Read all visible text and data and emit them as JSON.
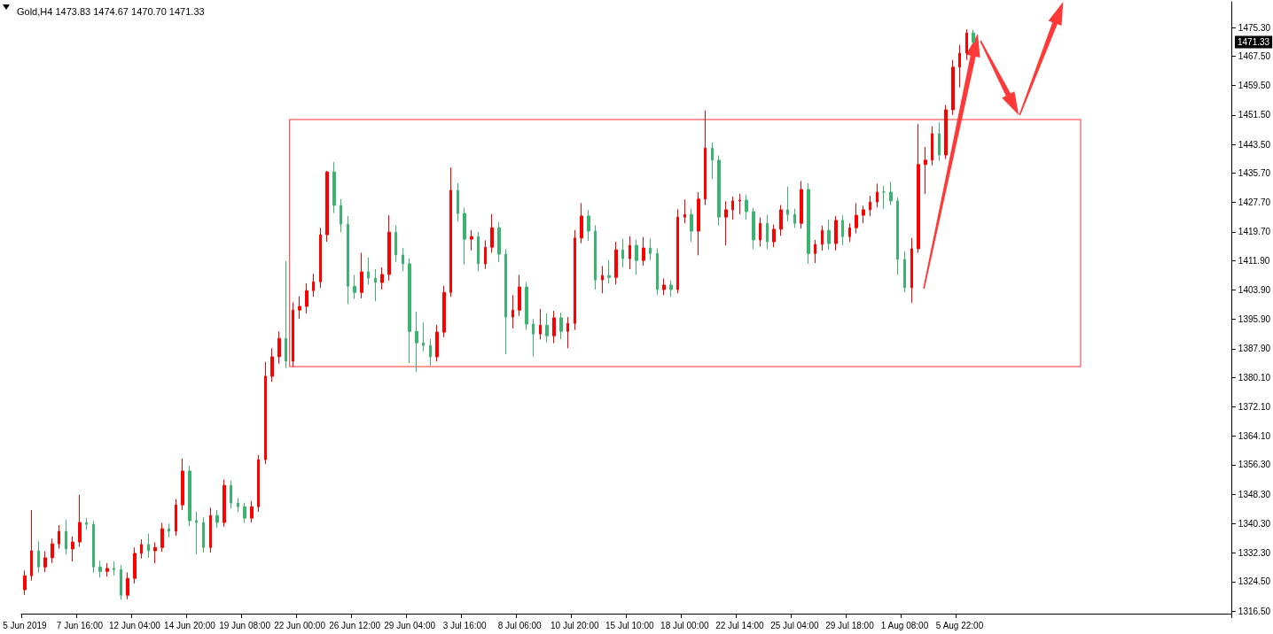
{
  "chart_data": {
    "type": "candlestick",
    "title": "Gold,H4 1473.83 1474.67 1470.70 1471.33",
    "categories": [
      "5 Jun 2019",
      null,
      null,
      null,
      null,
      null,
      null,
      null,
      "7 Jun 16:00",
      null,
      null,
      null,
      null,
      null,
      null,
      null,
      "12 Jun 04:00",
      null,
      null,
      null,
      null,
      null,
      null,
      null,
      "14 Jun 20:00",
      null,
      null,
      null,
      null,
      null,
      null,
      null,
      "19 Jun 08:00",
      null,
      null,
      null,
      null,
      null,
      null,
      null,
      "22 Jun 00:00",
      null,
      null,
      null,
      null,
      null,
      null,
      null,
      "26 Jun 12:00",
      null,
      null,
      null,
      null,
      null,
      null,
      null,
      "29 Jun 04:00",
      null,
      null,
      null,
      null,
      null,
      null,
      null,
      "3 Jul 16:00",
      null,
      null,
      null,
      null,
      null,
      null,
      null,
      "8 Jul 06:00",
      null,
      null,
      null,
      null,
      null,
      null,
      null,
      "10 Jul 20:00",
      null,
      null,
      null,
      null,
      null,
      null,
      null,
      "15 Jul 10:00",
      null,
      null,
      null,
      null,
      null,
      null,
      null,
      "18 Jul 00:00",
      null,
      null,
      null,
      null,
      null,
      null,
      null,
      "22 Jul 14:00",
      null,
      null,
      null,
      null,
      null,
      null,
      null,
      "25 Jul 04:00",
      null,
      null,
      null,
      null,
      null,
      null,
      null,
      "29 Jul 18:00",
      null,
      null,
      null,
      null,
      null,
      null,
      null,
      "1 Aug 08:00",
      null,
      null,
      null,
      null,
      null,
      null,
      null,
      "5 Aug 22:00",
      null,
      null,
      null,
      null,
      null,
      null,
      null,
      null,
      null,
      null,
      null,
      null,
      null,
      null,
      null,
      null,
      null,
      null,
      null,
      null,
      null,
      null,
      null,
      null,
      null,
      null,
      null,
      null,
      null,
      null,
      null,
      null,
      null,
      null,
      null,
      null,
      null,
      null,
      null
    ],
    "ohlc": [
      [
        1322.3,
        1327.5,
        1320.9,
        1326.1
      ],
      [
        1326.1,
        1344.0,
        1324.8,
        1332.9
      ],
      [
        1332.9,
        1335.5,
        1327.0,
        1328.5
      ],
      [
        1328.5,
        1332.8,
        1327.1,
        1331.0
      ],
      [
        1331.0,
        1336.2,
        1329.6,
        1334.8
      ],
      [
        1334.8,
        1339.9,
        1333.5,
        1338.2
      ],
      [
        1338.2,
        1341.3,
        1331.9,
        1333.4
      ],
      [
        1333.4,
        1336.8,
        1330.0,
        1335.3
      ],
      [
        1335.3,
        1348.1,
        1334.0,
        1340.6
      ],
      [
        1340.6,
        1341.8,
        1338.6,
        1340.1
      ],
      [
        1340.1,
        1341.0,
        1327.0,
        1328.5
      ],
      [
        1328.5,
        1330.2,
        1325.6,
        1327.3
      ],
      [
        1327.3,
        1329.5,
        1325.9,
        1328.1
      ],
      [
        1328.1,
        1330.0,
        1326.2,
        1327.8
      ],
      [
        1327.8,
        1329.0,
        1319.6,
        1320.8
      ],
      [
        1320.8,
        1327.0,
        1319.7,
        1325.4
      ],
      [
        1325.4,
        1333.8,
        1324.0,
        1332.2
      ],
      [
        1332.2,
        1336.0,
        1330.8,
        1334.6
      ],
      [
        1334.6,
        1337.6,
        1331.0,
        1332.9
      ],
      [
        1332.9,
        1335.2,
        1329.5,
        1333.8
      ],
      [
        1333.8,
        1340.5,
        1332.6,
        1338.9
      ],
      [
        1338.9,
        1340.3,
        1336.5,
        1338.2
      ],
      [
        1338.2,
        1347.0,
        1337.0,
        1345.4
      ],
      [
        1345.4,
        1358.0,
        1344.0,
        1354.6
      ],
      [
        1354.6,
        1356.0,
        1339.6,
        1341.1
      ],
      [
        1341.1,
        1343.5,
        1332.0,
        1340.6
      ],
      [
        1340.6,
        1342.0,
        1332.5,
        1333.8
      ],
      [
        1333.8,
        1344.6,
        1332.4,
        1342.5
      ],
      [
        1342.5,
        1344.0,
        1339.2,
        1340.6
      ],
      [
        1340.6,
        1352.3,
        1339.5,
        1350.7
      ],
      [
        1350.7,
        1352.0,
        1344.4,
        1345.9
      ],
      [
        1345.9,
        1347.2,
        1343.4,
        1344.9
      ],
      [
        1344.9,
        1346.0,
        1340.5,
        1341.8
      ],
      [
        1341.8,
        1346.5,
        1340.6,
        1344.9
      ],
      [
        1344.9,
        1359.0,
        1343.5,
        1357.7
      ],
      [
        1357.7,
        1384.3,
        1356.5,
        1380.4
      ],
      [
        1380.4,
        1388.0,
        1378.9,
        1385.7
      ],
      [
        1385.7,
        1392.6,
        1383.8,
        1390.7
      ],
      [
        1390.7,
        1411.7,
        1382.6,
        1384.5
      ],
      [
        1384.5,
        1400.5,
        1383.0,
        1398.4
      ],
      [
        1398.4,
        1402.1,
        1396.0,
        1399.4
      ],
      [
        1399.4,
        1405.7,
        1397.5,
        1403.7
      ],
      [
        1403.7,
        1408.3,
        1402.0,
        1406.1
      ],
      [
        1406.1,
        1420.8,
        1404.4,
        1418.9
      ],
      [
        1418.9,
        1436.3,
        1417.0,
        1436.0
      ],
      [
        1436.0,
        1438.7,
        1424.8,
        1426.9
      ],
      [
        1426.9,
        1428.6,
        1419.6,
        1421.8
      ],
      [
        1421.8,
        1424.0,
        1400.0,
        1404.9
      ],
      [
        1404.9,
        1408.0,
        1401.4,
        1403.2
      ],
      [
        1403.2,
        1414.0,
        1401.6,
        1408.8
      ],
      [
        1408.8,
        1412.7,
        1405.3,
        1407.1
      ],
      [
        1407.1,
        1409.5,
        1400.8,
        1405.9
      ],
      [
        1405.9,
        1410.0,
        1404.0,
        1408.1
      ],
      [
        1408.1,
        1424.2,
        1406.4,
        1419.6
      ],
      [
        1419.6,
        1421.4,
        1411.5,
        1413.4
      ],
      [
        1413.4,
        1415.3,
        1409.0,
        1411.0
      ],
      [
        1411.0,
        1412.5,
        1384.0,
        1392.6
      ],
      [
        1392.6,
        1398.0,
        1381.6,
        1389.5
      ],
      [
        1389.5,
        1395.0,
        1387.2,
        1388.8
      ],
      [
        1388.8,
        1390.5,
        1383.3,
        1385.7
      ],
      [
        1385.7,
        1394.4,
        1384.4,
        1392.4
      ],
      [
        1392.4,
        1405.0,
        1391.0,
        1403.2
      ],
      [
        1403.2,
        1437.2,
        1402.0,
        1431.0
      ],
      [
        1431.0,
        1433.0,
        1422.5,
        1424.7
      ],
      [
        1424.7,
        1426.3,
        1410.8,
        1417.7
      ],
      [
        1417.7,
        1420.2,
        1414.6,
        1418.4
      ],
      [
        1418.4,
        1419.6,
        1409.0,
        1411.0
      ],
      [
        1411.0,
        1417.4,
        1409.6,
        1415.5
      ],
      [
        1415.5,
        1424.5,
        1414.0,
        1420.8
      ],
      [
        1420.8,
        1422.3,
        1411.5,
        1413.6
      ],
      [
        1413.6,
        1415.0,
        1386.4,
        1396.5
      ],
      [
        1396.5,
        1402.5,
        1393.4,
        1398.4
      ],
      [
        1398.4,
        1408.0,
        1396.8,
        1404.7
      ],
      [
        1404.7,
        1406.0,
        1393.0,
        1394.6
      ],
      [
        1394.6,
        1396.0,
        1385.7,
        1391.9
      ],
      [
        1391.9,
        1398.7,
        1390.4,
        1394.3
      ],
      [
        1394.3,
        1397.5,
        1389.6,
        1391.4
      ],
      [
        1391.4,
        1398.2,
        1389.4,
        1396.3
      ],
      [
        1396.3,
        1397.7,
        1390.5,
        1392.6
      ],
      [
        1392.6,
        1396.5,
        1388.0,
        1394.8
      ],
      [
        1394.8,
        1420.2,
        1393.0,
        1418.0
      ],
      [
        1418.0,
        1427.5,
        1416.6,
        1424.0
      ],
      [
        1424.0,
        1425.6,
        1417.2,
        1419.9
      ],
      [
        1419.9,
        1421.5,
        1404.0,
        1406.6
      ],
      [
        1406.6,
        1410.4,
        1403.0,
        1407.8
      ],
      [
        1407.8,
        1412.0,
        1405.6,
        1407.3
      ],
      [
        1407.3,
        1417.0,
        1405.4,
        1414.8
      ],
      [
        1414.8,
        1417.8,
        1410.0,
        1412.4
      ],
      [
        1412.4,
        1418.5,
        1409.5,
        1416.0
      ],
      [
        1416.0,
        1417.5,
        1408.0,
        1411.9
      ],
      [
        1411.9,
        1418.3,
        1410.5,
        1415.3
      ],
      [
        1415.3,
        1417.9,
        1412.0,
        1413.8
      ],
      [
        1413.8,
        1415.2,
        1402.6,
        1404.0
      ],
      [
        1404.0,
        1407.0,
        1402.5,
        1405.2
      ],
      [
        1405.2,
        1406.5,
        1402.0,
        1404.0
      ],
      [
        1404.0,
        1425.8,
        1403.0,
        1423.7
      ],
      [
        1423.7,
        1428.5,
        1422.0,
        1424.4
      ],
      [
        1424.4,
        1426.0,
        1417.0,
        1419.9
      ],
      [
        1419.9,
        1430.5,
        1413.3,
        1428.6
      ],
      [
        1428.6,
        1452.7,
        1427.0,
        1442.5
      ],
      [
        1442.5,
        1444.0,
        1434.0,
        1439.2
      ],
      [
        1439.2,
        1440.5,
        1421.4,
        1423.7
      ],
      [
        1423.7,
        1428.0,
        1416.0,
        1425.7
      ],
      [
        1425.7,
        1429.3,
        1423.0,
        1428.1
      ],
      [
        1428.1,
        1430.0,
        1424.5,
        1428.3
      ],
      [
        1428.3,
        1429.7,
        1423.0,
        1425.2
      ],
      [
        1425.2,
        1426.2,
        1415.0,
        1417.5
      ],
      [
        1417.5,
        1423.6,
        1415.7,
        1422.0
      ],
      [
        1422.0,
        1424.3,
        1415.0,
        1417.0
      ],
      [
        1417.0,
        1421.7,
        1415.5,
        1420.4
      ],
      [
        1420.4,
        1427.0,
        1418.6,
        1425.7
      ],
      [
        1425.7,
        1432.0,
        1422.5,
        1424.4
      ],
      [
        1424.4,
        1426.0,
        1420.8,
        1422.0
      ],
      [
        1422.0,
        1433.5,
        1420.6,
        1431.2
      ],
      [
        1431.2,
        1432.9,
        1411.0,
        1413.8
      ],
      [
        1413.8,
        1417.5,
        1411.2,
        1416.3
      ],
      [
        1416.3,
        1421.4,
        1414.6,
        1420.1
      ],
      [
        1420.1,
        1423.0,
        1414.8,
        1416.5
      ],
      [
        1416.5,
        1424.0,
        1414.6,
        1422.8
      ],
      [
        1422.8,
        1424.2,
        1416.0,
        1418.4
      ],
      [
        1418.4,
        1422.0,
        1417.0,
        1420.8
      ],
      [
        1420.8,
        1427.5,
        1419.3,
        1424.2
      ],
      [
        1424.2,
        1426.8,
        1422.0,
        1425.7
      ],
      [
        1425.7,
        1429.5,
        1424.0,
        1427.8
      ],
      [
        1427.8,
        1432.8,
        1426.3,
        1430.5
      ],
      [
        1430.5,
        1432.2,
        1426.0,
        1430.5
      ],
      [
        1430.5,
        1433.3,
        1427.0,
        1428.1
      ],
      [
        1428.1,
        1429.0,
        1408.0,
        1412.2
      ],
      [
        1412.2,
        1414.3,
        1403.3,
        1404.5
      ],
      [
        1404.5,
        1418.0,
        1400.4,
        1415.1
      ],
      [
        1415.1,
        1449.0,
        1414.0,
        1438.0
      ],
      [
        1438.0,
        1442.8,
        1430.0,
        1439.2
      ],
      [
        1439.2,
        1448.4,
        1437.8,
        1446.4
      ],
      [
        1446.4,
        1449.5,
        1439.0,
        1440.6
      ],
      [
        1440.6,
        1454.2,
        1439.5,
        1452.9
      ],
      [
        1452.9,
        1466.5,
        1451.5,
        1464.5
      ],
      [
        1464.5,
        1470.6,
        1459.0,
        1468.3
      ],
      [
        1468.3,
        1474.8,
        1466.5,
        1473.83
      ],
      [
        1473.83,
        1474.67,
        1470.7,
        1471.33
      ],
      null,
      null,
      null,
      null,
      null,
      null,
      null,
      null,
      null,
      null,
      null,
      null,
      null,
      null,
      null,
      null,
      null,
      null,
      null,
      null,
      null,
      null,
      null,
      null,
      null,
      null,
      null,
      null,
      null,
      null,
      null,
      null,
      null,
      null,
      null,
      null,
      null
    ],
    "colors": [
      "#ff0000",
      "#ff0000",
      "#3cb371",
      "#ff0000",
      "#ff0000",
      "#ff0000",
      "#3cb371",
      "#ff0000",
      "#ff0000",
      "#3cb371",
      "#3cb371",
      "#3cb371",
      "#ff0000",
      "#3cb371",
      "#3cb371",
      "#ff0000",
      "#ff0000",
      "#ff0000",
      "#3cb371",
      "#ff0000",
      "#ff0000",
      "#3cb371",
      "#ff0000",
      "#ff0000",
      "#3cb371",
      "#3cb371",
      "#3cb371",
      "#ff0000",
      "#3cb371",
      "#ff0000",
      "#3cb371",
      "#3cb371",
      "#3cb371",
      "#ff0000",
      "#ff0000",
      "#ff0000",
      "#ff0000",
      "#ff0000",
      "#3cb371",
      "#ff0000",
      "#ff0000",
      "#ff0000",
      "#ff0000",
      "#ff0000",
      "#ff0000",
      "#3cb371",
      "#3cb371",
      "#3cb371",
      "#3cb371",
      "#ff0000",
      "#3cb371",
      "#3cb371",
      "#ff0000",
      "#ff0000",
      "#3cb371",
      "#3cb371",
      "#3cb371",
      "#3cb371",
      "#3cb371",
      "#3cb371",
      "#ff0000",
      "#ff0000",
      "#ff0000",
      "#3cb371",
      "#3cb371",
      "#ff0000",
      "#3cb371",
      "#ff0000",
      "#ff0000",
      "#3cb371",
      "#3cb371",
      "#ff0000",
      "#ff0000",
      "#3cb371",
      "#3cb371",
      "#ff0000",
      "#3cb371",
      "#ff0000",
      "#3cb371",
      "#ff0000",
      "#ff0000",
      "#ff0000",
      "#3cb371",
      "#3cb371",
      "#ff0000",
      "#3cb371",
      "#ff0000",
      "#3cb371",
      "#ff0000",
      "#3cb371",
      "#ff0000",
      "#3cb371",
      "#3cb371",
      "#ff0000",
      "#3cb371",
      "#ff0000",
      "#ff0000",
      "#3cb371",
      "#ff0000",
      "#ff0000",
      "#3cb371",
      "#3cb371",
      "#ff0000",
      "#ff0000",
      "#ff0000",
      "#3cb371",
      "#3cb371",
      "#ff0000",
      "#3cb371",
      "#ff0000",
      "#ff0000",
      "#3cb371",
      "#3cb371",
      "#ff0000",
      "#3cb371",
      "#ff0000",
      "#ff0000",
      "#3cb371",
      "#ff0000",
      "#3cb371",
      "#ff0000",
      "#ff0000",
      "#ff0000",
      "#ff0000",
      "#ff0000",
      "#3cb371",
      "#3cb371",
      "#3cb371",
      "#3cb371",
      "#ff0000",
      "#ff0000",
      "#ff0000",
      "#ff0000",
      "#3cb371",
      "#ff0000",
      "#ff0000",
      "#ff0000",
      "#ff0000",
      "#3cb371",
      null,
      null,
      null,
      null,
      null,
      null,
      null,
      null,
      null,
      null,
      null,
      null,
      null,
      null,
      null,
      null,
      null,
      null,
      null,
      null,
      null,
      null,
      null,
      null,
      null,
      null,
      null,
      null,
      null,
      null,
      null,
      null,
      null,
      null,
      null,
      null,
      null
    ],
    "ylim": [
      1315.8,
      1482.3
    ],
    "yticks": [
      {
        "value": 1316.5,
        "label": "1316.50"
      },
      {
        "value": 1324.5,
        "label": "1324.50"
      },
      {
        "value": 1332.3,
        "label": "1332.30"
      },
      {
        "value": 1340.3,
        "label": "1340.30"
      },
      {
        "value": 1348.3,
        "label": "1348.30"
      },
      {
        "value": 1356.3,
        "label": "1356.30"
      },
      {
        "value": 1364.1,
        "label": "1364.10"
      },
      {
        "value": 1372.1,
        "label": "1372.10"
      },
      {
        "value": 1380.1,
        "label": "1380.10"
      },
      {
        "value": 1387.9,
        "label": "1387.90"
      },
      {
        "value": 1395.9,
        "label": "1395.90"
      },
      {
        "value": 1403.9,
        "label": "1403.90"
      },
      {
        "value": 1411.9,
        "label": "1411.90"
      },
      {
        "value": 1419.7,
        "label": "1419.70"
      },
      {
        "value": 1427.7,
        "label": "1427.70"
      },
      {
        "value": 1435.7,
        "label": "1435.70"
      },
      {
        "value": 1443.5,
        "label": "1443.50"
      },
      {
        "value": 1451.5,
        "label": "1451.50"
      },
      {
        "value": 1459.5,
        "label": "1459.50"
      },
      {
        "value": 1467.5,
        "label": "1467.50"
      },
      {
        "value": 1475.3,
        "label": "1475.30"
      }
    ],
    "annotations": [
      "1471.33"
    ]
  }
}
